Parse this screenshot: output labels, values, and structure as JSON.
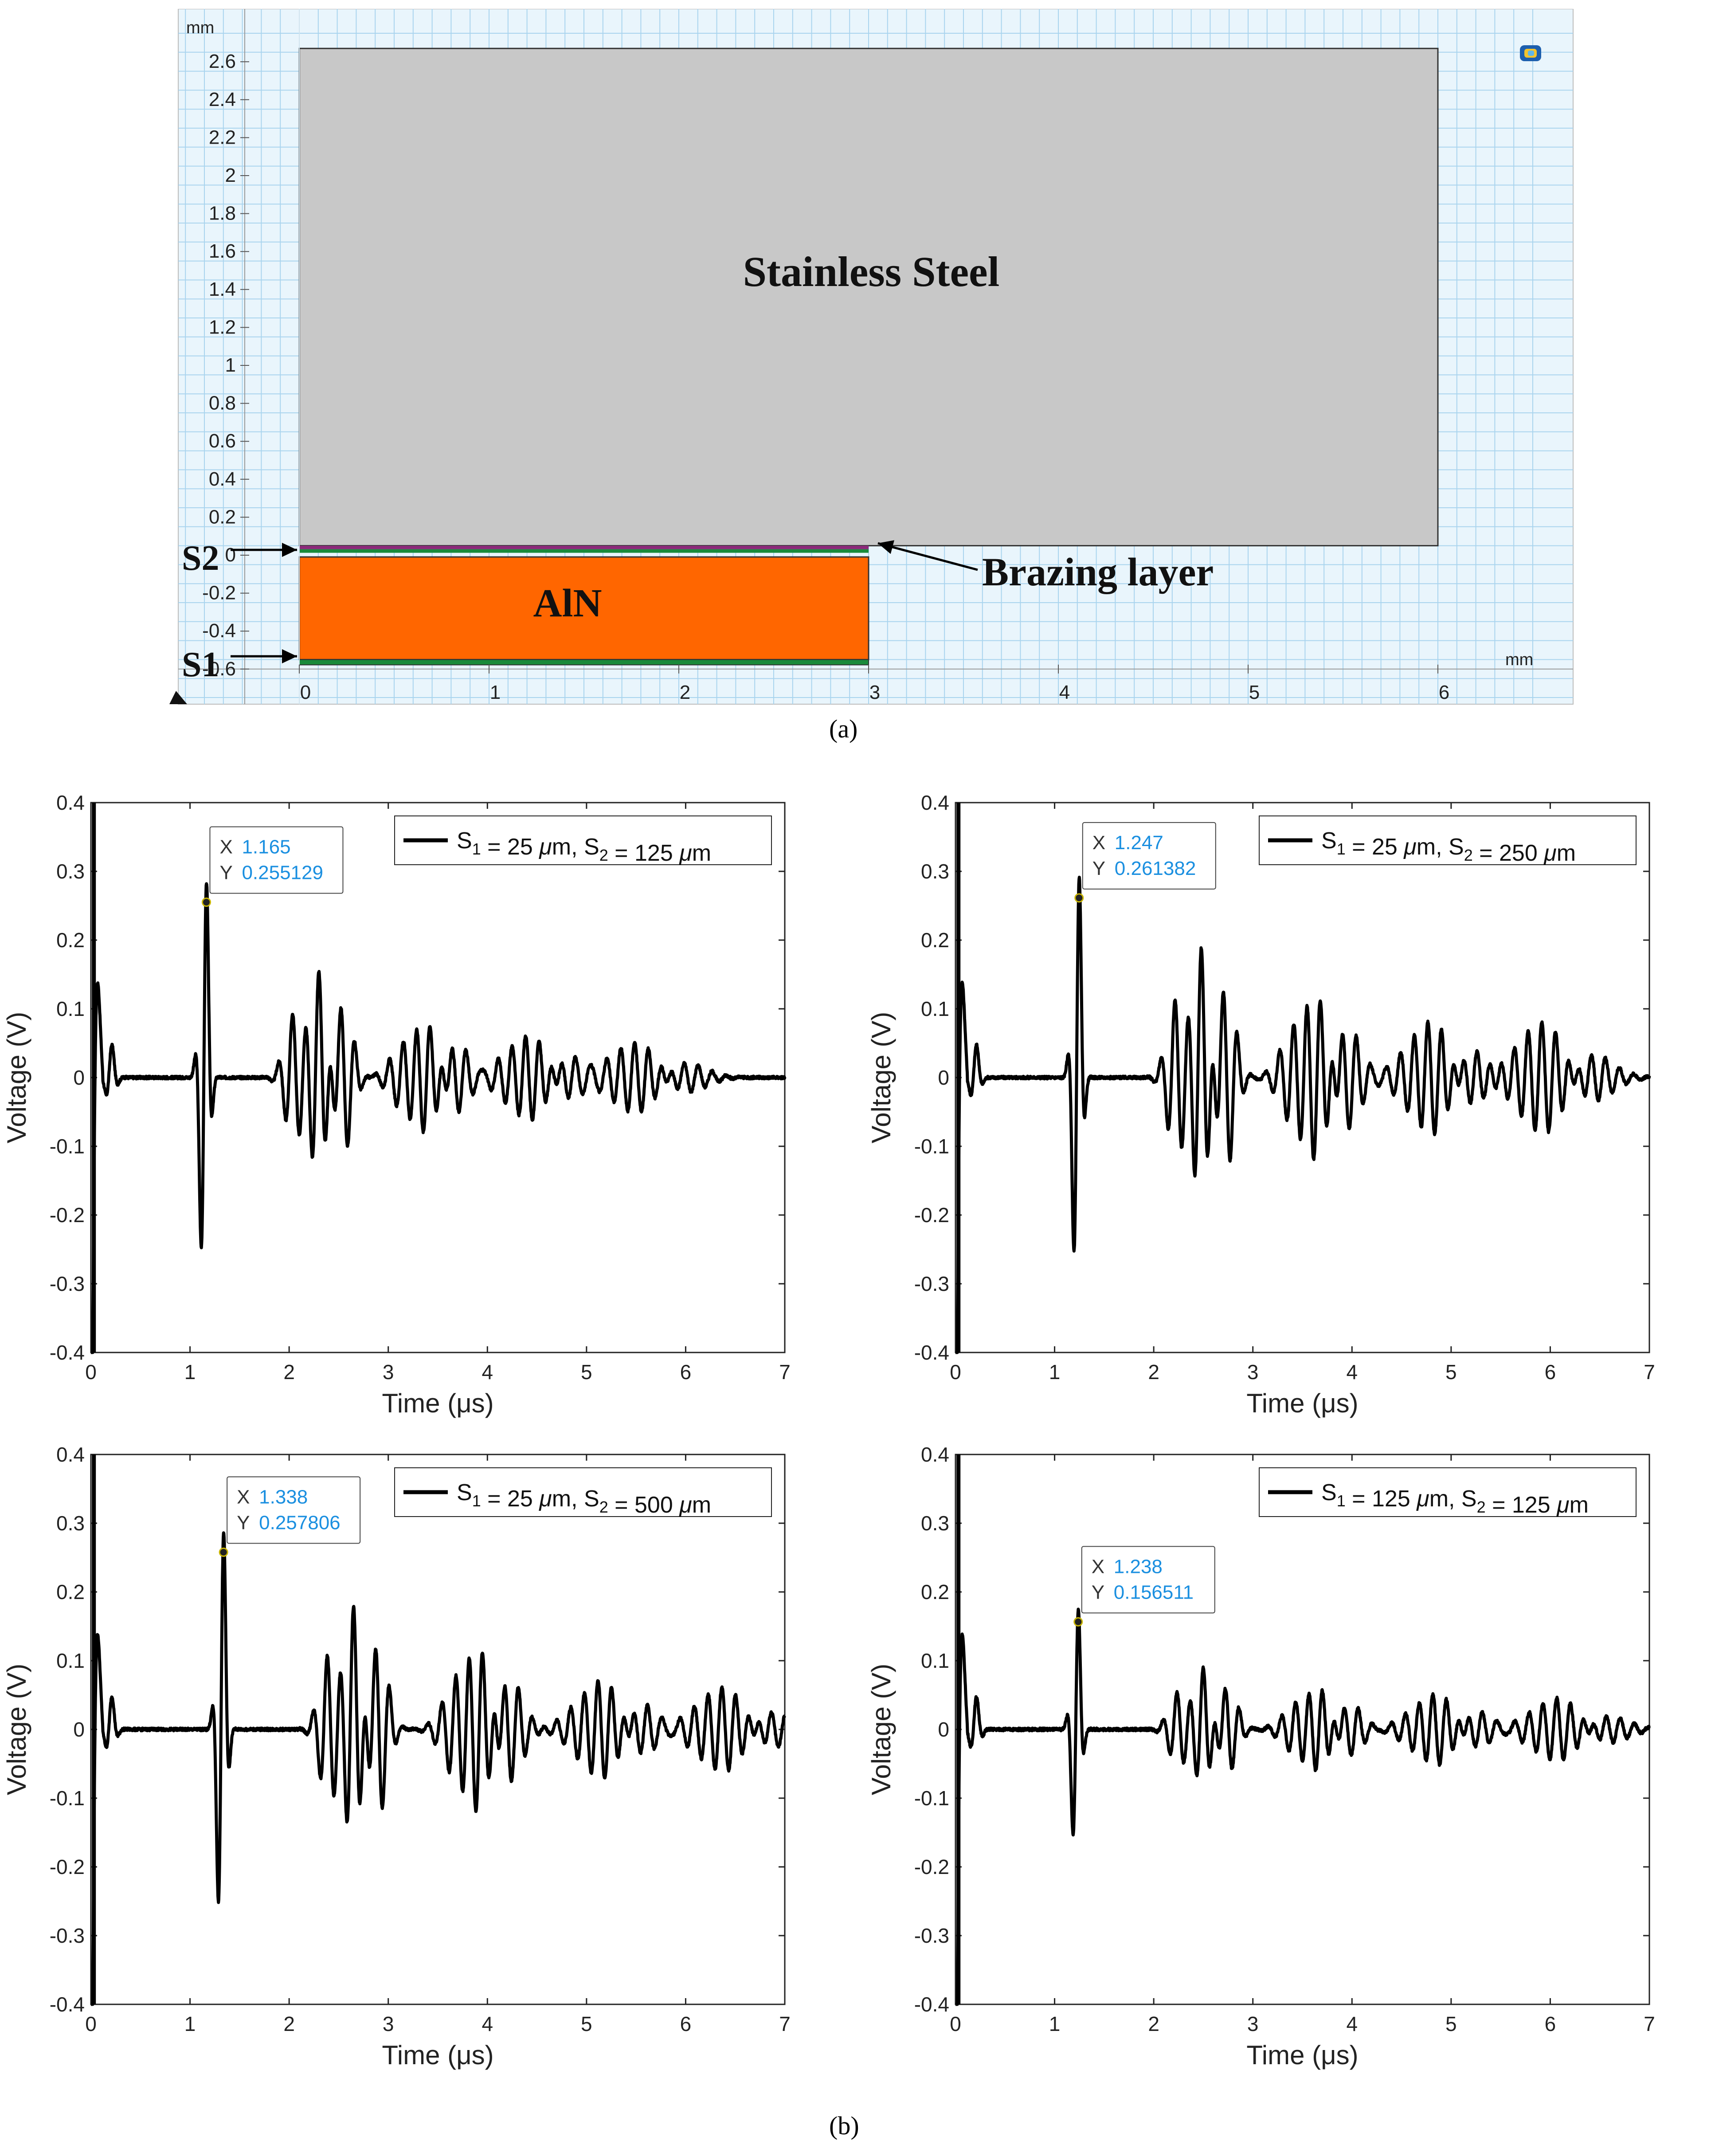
{
  "figure_a": {
    "unit_y": "mm",
    "unit_x": "mm",
    "y_ticks": [
      "2.6",
      "2.4",
      "2.2",
      "2",
      "1.8",
      "1.6",
      "1.4",
      "1.2",
      "1",
      "0.8",
      "0.6",
      "0.4",
      "0.2",
      "0",
      "-0.2",
      "-0.4",
      "-0.6"
    ],
    "x_ticks": [
      "0",
      "1",
      "2",
      "3",
      "4",
      "5",
      "6"
    ],
    "steel_label": "Stainless Steel",
    "aln_label": "AlN",
    "brazing_label": "Brazing layer",
    "s1_label": "S1",
    "s2_label": "S2",
    "caption": "(a)",
    "colors": {
      "steel": "#c8c8c8",
      "aln": "#ff6600",
      "grid": "#a9d4ee",
      "background": "#e9f5fc"
    }
  },
  "caption_b": "(b)",
  "chart_data": [
    {
      "type": "line",
      "xlabel": "Time (μs)",
      "ylabel": "Voltage (V)",
      "xlim": [
        0,
        7
      ],
      "ylim": [
        -0.4,
        0.4
      ],
      "x_ticks": [
        "0",
        "1",
        "2",
        "3",
        "4",
        "5",
        "6",
        "7"
      ],
      "y_ticks": [
        "0.4",
        "0.3",
        "0.2",
        "0.1",
        "0",
        "-0.1",
        "-0.2",
        "-0.3",
        "-0.4"
      ],
      "legend": {
        "position": "top-right",
        "s1": "25",
        "s2": "125"
      },
      "datatip": {
        "x": "1.165",
        "y": "0.255129"
      },
      "echo_amplitudes": [
        0.255,
        0.155,
        0.08,
        0.06,
        0.05
      ],
      "echo_times": [
        1.165,
        2.3,
        3.42,
        4.52,
        5.62
      ],
      "series_color": "#000000"
    },
    {
      "type": "line",
      "xlabel": "Time (μs)",
      "ylabel": "Voltage (V)",
      "xlim": [
        0,
        7
      ],
      "ylim": [
        -0.4,
        0.4
      ],
      "x_ticks": [
        "0",
        "1",
        "2",
        "3",
        "4",
        "5",
        "6",
        "7"
      ],
      "y_ticks": [
        "0.4",
        "0.3",
        "0.2",
        "0.1",
        "0",
        "-0.1",
        "-0.2",
        "-0.3",
        "-0.4"
      ],
      "legend": {
        "position": "top-right",
        "s1": "25",
        "s2": "250"
      },
      "datatip": {
        "x": "1.247",
        "y": "0.261382"
      },
      "echo_amplitudes": [
        0.261,
        0.19,
        0.12,
        0.08,
        0.08
      ],
      "echo_times": [
        1.247,
        2.48,
        3.68,
        4.9,
        6.05
      ],
      "series_color": "#000000"
    },
    {
      "type": "line",
      "xlabel": "Time (μs)",
      "ylabel": "Voltage (V)",
      "xlim": [
        0,
        7
      ],
      "ylim": [
        -0.4,
        0.4
      ],
      "x_ticks": [
        "0",
        "1",
        "2",
        "3",
        "4",
        "5",
        "6",
        "7"
      ],
      "y_ticks": [
        "0.4",
        "0.3",
        "0.2",
        "0.1",
        "0",
        "-0.1",
        "-0.2",
        "-0.3",
        "-0.4"
      ],
      "legend": {
        "position": "top-right",
        "s1": "25",
        "s2": "500"
      },
      "datatip": {
        "x": "1.338",
        "y": "0.257806"
      },
      "echo_amplitudes": [
        0.258,
        0.18,
        0.12,
        0.07,
        0.06
      ],
      "echo_times": [
        1.338,
        2.65,
        3.95,
        5.25,
        6.5
      ],
      "series_color": "#000000"
    },
    {
      "type": "line",
      "xlabel": "Time (μs)",
      "ylabel": "Voltage (V)",
      "xlim": [
        0,
        7
      ],
      "ylim": [
        -0.4,
        0.4
      ],
      "x_ticks": [
        "0",
        "1",
        "2",
        "3",
        "4",
        "5",
        "6",
        "7"
      ],
      "y_ticks": [
        "0.4",
        "0.3",
        "0.2",
        "0.1",
        "0",
        "-0.1",
        "-0.2",
        "-0.3",
        "-0.4"
      ],
      "legend": {
        "position": "top-right",
        "s1": "125",
        "s2": "125"
      },
      "datatip": {
        "x": "1.238",
        "y": "0.156511"
      },
      "echo_amplitudes": [
        0.157,
        0.09,
        0.06,
        0.05,
        0.045
      ],
      "echo_times": [
        1.238,
        2.5,
        3.7,
        4.95,
        6.2
      ],
      "series_color": "#000000"
    }
  ]
}
